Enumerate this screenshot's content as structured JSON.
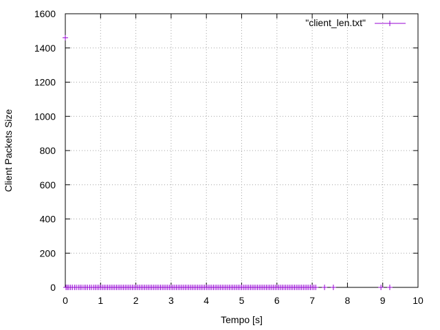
{
  "chart_data": {
    "type": "scatter",
    "title": "",
    "xlabel": "Tempo [s]",
    "ylabel": "Client Packets Size",
    "xlim": [
      0,
      10
    ],
    "ylim": [
      0,
      1600
    ],
    "xticks": [
      0,
      1,
      2,
      3,
      4,
      5,
      6,
      7,
      8,
      9,
      10
    ],
    "xtick_labels": [
      "0",
      "1",
      "2",
      "3",
      "4",
      "5",
      "6",
      "7",
      "8",
      "9",
      "10"
    ],
    "yticks": [
      0,
      200,
      400,
      600,
      800,
      1000,
      1200,
      1400,
      1600
    ],
    "ytick_labels": [
      "0",
      "200",
      "400",
      "600",
      "800",
      "1000",
      "1200",
      "1400",
      "1600"
    ],
    "grid": true,
    "legend_position": "top-right",
    "marker": "plus",
    "color": "#9400d3",
    "series": [
      {
        "name": "\"client_len.txt\"",
        "points": [
          {
            "x": 0.0,
            "y": 1460
          },
          {
            "x": 0.02,
            "y": 0
          },
          {
            "x": 0.06,
            "y": 0
          },
          {
            "x": 0.1,
            "y": 0
          },
          {
            "x": 0.15,
            "y": 0
          },
          {
            "x": 0.2,
            "y": 0
          },
          {
            "x": 0.26,
            "y": 0
          },
          {
            "x": 0.31,
            "y": 0
          },
          {
            "x": 0.37,
            "y": 0
          },
          {
            "x": 0.42,
            "y": 0
          },
          {
            "x": 0.47,
            "y": 0
          },
          {
            "x": 0.53,
            "y": 0
          },
          {
            "x": 0.58,
            "y": 0
          },
          {
            "x": 0.63,
            "y": 0
          },
          {
            "x": 0.69,
            "y": 0
          },
          {
            "x": 0.74,
            "y": 0
          },
          {
            "x": 0.8,
            "y": 0
          },
          {
            "x": 0.85,
            "y": 0
          },
          {
            "x": 0.9,
            "y": 0
          },
          {
            "x": 0.95,
            "y": 0
          },
          {
            "x": 1.0,
            "y": 0
          },
          {
            "x": 1.05,
            "y": 0
          },
          {
            "x": 1.1,
            "y": 0
          },
          {
            "x": 1.15,
            "y": 0
          },
          {
            "x": 1.2,
            "y": 0
          },
          {
            "x": 1.25,
            "y": 0
          },
          {
            "x": 1.3,
            "y": 0
          },
          {
            "x": 1.35,
            "y": 0
          },
          {
            "x": 1.4,
            "y": 0
          },
          {
            "x": 1.45,
            "y": 0
          },
          {
            "x": 1.5,
            "y": 0
          },
          {
            "x": 1.55,
            "y": 0
          },
          {
            "x": 1.6,
            "y": 0
          },
          {
            "x": 1.65,
            "y": 0
          },
          {
            "x": 1.7,
            "y": 0
          },
          {
            "x": 1.75,
            "y": 0
          },
          {
            "x": 1.8,
            "y": 0
          },
          {
            "x": 1.85,
            "y": 0
          },
          {
            "x": 1.9,
            "y": 0
          },
          {
            "x": 1.95,
            "y": 0
          },
          {
            "x": 2.0,
            "y": 0
          },
          {
            "x": 2.05,
            "y": 0
          },
          {
            "x": 2.1,
            "y": 0
          },
          {
            "x": 2.15,
            "y": 0
          },
          {
            "x": 2.2,
            "y": 0
          },
          {
            "x": 2.25,
            "y": 0
          },
          {
            "x": 2.3,
            "y": 0
          },
          {
            "x": 2.35,
            "y": 0
          },
          {
            "x": 2.4,
            "y": 0
          },
          {
            "x": 2.45,
            "y": 0
          },
          {
            "x": 2.5,
            "y": 0
          },
          {
            "x": 2.55,
            "y": 0
          },
          {
            "x": 2.6,
            "y": 0
          },
          {
            "x": 2.65,
            "y": 0
          },
          {
            "x": 2.7,
            "y": 0
          },
          {
            "x": 2.75,
            "y": 0
          },
          {
            "x": 2.8,
            "y": 0
          },
          {
            "x": 2.85,
            "y": 0
          },
          {
            "x": 2.9,
            "y": 0
          },
          {
            "x": 2.95,
            "y": 0
          },
          {
            "x": 3.0,
            "y": 0
          },
          {
            "x": 3.05,
            "y": 0
          },
          {
            "x": 3.1,
            "y": 0
          },
          {
            "x": 3.15,
            "y": 0
          },
          {
            "x": 3.2,
            "y": 0
          },
          {
            "x": 3.25,
            "y": 0
          },
          {
            "x": 3.3,
            "y": 0
          },
          {
            "x": 3.35,
            "y": 0
          },
          {
            "x": 3.4,
            "y": 0
          },
          {
            "x": 3.45,
            "y": 0
          },
          {
            "x": 3.5,
            "y": 0
          },
          {
            "x": 3.55,
            "y": 0
          },
          {
            "x": 3.6,
            "y": 0
          },
          {
            "x": 3.65,
            "y": 0
          },
          {
            "x": 3.7,
            "y": 0
          },
          {
            "x": 3.75,
            "y": 0
          },
          {
            "x": 3.8,
            "y": 0
          },
          {
            "x": 3.85,
            "y": 0
          },
          {
            "x": 3.9,
            "y": 0
          },
          {
            "x": 3.95,
            "y": 0
          },
          {
            "x": 4.0,
            "y": 0
          },
          {
            "x": 4.05,
            "y": 0
          },
          {
            "x": 4.1,
            "y": 0
          },
          {
            "x": 4.15,
            "y": 0
          },
          {
            "x": 4.2,
            "y": 0
          },
          {
            "x": 4.25,
            "y": 0
          },
          {
            "x": 4.3,
            "y": 0
          },
          {
            "x": 4.35,
            "y": 0
          },
          {
            "x": 4.4,
            "y": 0
          },
          {
            "x": 4.45,
            "y": 0
          },
          {
            "x": 4.5,
            "y": 0
          },
          {
            "x": 4.55,
            "y": 0
          },
          {
            "x": 4.6,
            "y": 0
          },
          {
            "x": 4.65,
            "y": 0
          },
          {
            "x": 4.7,
            "y": 0
          },
          {
            "x": 4.75,
            "y": 0
          },
          {
            "x": 4.8,
            "y": 0
          },
          {
            "x": 4.85,
            "y": 0
          },
          {
            "x": 4.9,
            "y": 0
          },
          {
            "x": 4.95,
            "y": 0
          },
          {
            "x": 5.0,
            "y": 0
          },
          {
            "x": 5.05,
            "y": 0
          },
          {
            "x": 5.1,
            "y": 0
          },
          {
            "x": 5.15,
            "y": 0
          },
          {
            "x": 5.2,
            "y": 0
          },
          {
            "x": 5.25,
            "y": 0
          },
          {
            "x": 5.3,
            "y": 0
          },
          {
            "x": 5.35,
            "y": 0
          },
          {
            "x": 5.4,
            "y": 0
          },
          {
            "x": 5.45,
            "y": 0
          },
          {
            "x": 5.5,
            "y": 0
          },
          {
            "x": 5.55,
            "y": 0
          },
          {
            "x": 5.6,
            "y": 0
          },
          {
            "x": 5.65,
            "y": 0
          },
          {
            "x": 5.7,
            "y": 0
          },
          {
            "x": 5.75,
            "y": 0
          },
          {
            "x": 5.8,
            "y": 0
          },
          {
            "x": 5.85,
            "y": 0
          },
          {
            "x": 5.9,
            "y": 0
          },
          {
            "x": 5.95,
            "y": 0
          },
          {
            "x": 6.0,
            "y": 0
          },
          {
            "x": 6.05,
            "y": 0
          },
          {
            "x": 6.1,
            "y": 0
          },
          {
            "x": 6.15,
            "y": 0
          },
          {
            "x": 6.2,
            "y": 0
          },
          {
            "x": 6.25,
            "y": 0
          },
          {
            "x": 6.3,
            "y": 0
          },
          {
            "x": 6.35,
            "y": 0
          },
          {
            "x": 6.4,
            "y": 0
          },
          {
            "x": 6.45,
            "y": 0
          },
          {
            "x": 6.5,
            "y": 0
          },
          {
            "x": 6.55,
            "y": 0
          },
          {
            "x": 6.6,
            "y": 0
          },
          {
            "x": 6.65,
            "y": 0
          },
          {
            "x": 6.7,
            "y": 0
          },
          {
            "x": 6.75,
            "y": 0
          },
          {
            "x": 6.8,
            "y": 0
          },
          {
            "x": 6.85,
            "y": 0
          },
          {
            "x": 6.9,
            "y": 0
          },
          {
            "x": 6.95,
            "y": 0
          },
          {
            "x": 7.0,
            "y": 0
          },
          {
            "x": 7.05,
            "y": 0
          },
          {
            "x": 7.1,
            "y": 0
          },
          {
            "x": 7.35,
            "y": 0
          },
          {
            "x": 7.6,
            "y": 0
          },
          {
            "x": 8.95,
            "y": 0
          },
          {
            "x": 9.2,
            "y": 0
          }
        ]
      }
    ]
  }
}
